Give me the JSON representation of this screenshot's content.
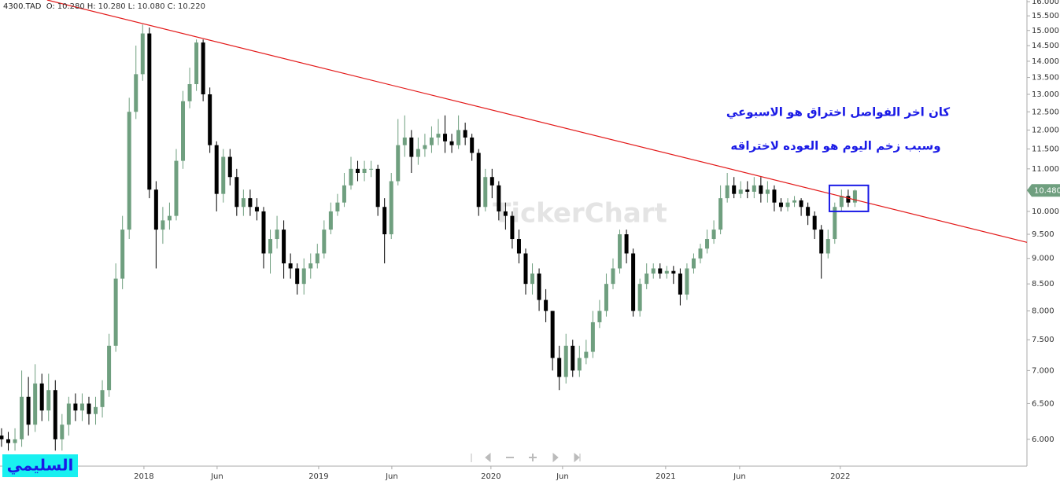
{
  "chart_data": {
    "type": "candlestick",
    "header": {
      "symbol": "4300.TAD",
      "fields": [
        {
          "label": "O:",
          "value": "10.280"
        },
        {
          "label": "H:",
          "value": "10.280"
        },
        {
          "label": "L:",
          "value": "10.080"
        },
        {
          "label": "C:",
          "value": "10.220"
        }
      ]
    },
    "log_scale": true,
    "grid": false,
    "up_color": "#6f9f7f",
    "down_color": "#000000",
    "xlim": [
      -0.23,
      152.6
    ],
    "xticks": [
      {
        "value": 21.19,
        "label": "2018"
      },
      {
        "value": 32.08,
        "label": "Jun"
      },
      {
        "value": 47.19,
        "label": "2019"
      },
      {
        "value": 58.08,
        "label": "Jun"
      },
      {
        "value": 72.83,
        "label": "2020"
      },
      {
        "value": 83.49,
        "label": "Jun"
      },
      {
        "value": 98.83,
        "label": "2021"
      },
      {
        "value": 109.84,
        "label": "Jun"
      },
      {
        "value": 124.82,
        "label": "2022"
      }
    ],
    "ylim": [
      5.65,
      16.06
    ],
    "yticks": [
      {
        "value": 6,
        "label": "6.000"
      },
      {
        "value": 6.5,
        "label": "6.500"
      },
      {
        "value": 7,
        "label": "7.000"
      },
      {
        "value": 7.5,
        "label": "7.500"
      },
      {
        "value": 8,
        "label": "8.000"
      },
      {
        "value": 8.5,
        "label": "8.500"
      },
      {
        "value": 9,
        "label": "9.000"
      },
      {
        "value": 9.5,
        "label": "9.500"
      },
      {
        "value": 10,
        "label": "10.000"
      },
      {
        "value": 10.5,
        "label": "10.500"
      },
      {
        "value": 11,
        "label": "11.000"
      },
      {
        "value": 11.5,
        "label": "11.500"
      },
      {
        "value": 12,
        "label": "12.000"
      },
      {
        "value": 12.5,
        "label": "12.500"
      },
      {
        "value": 13,
        "label": "13.000"
      },
      {
        "value": 13.5,
        "label": "13.500"
      },
      {
        "value": 14,
        "label": "14.000"
      },
      {
        "value": 14.5,
        "label": "14.500"
      },
      {
        "value": 15,
        "label": "15.000"
      },
      {
        "value": 15.5,
        "label": "15.500"
      },
      {
        "value": 16,
        "label": "16.000"
      }
    ],
    "open": [
      6.05,
      6.0,
      5.95,
      6.0,
      6.6,
      6.2,
      6.8,
      6.4,
      6.7,
      6.0,
      6.2,
      6.5,
      6.4,
      6.5,
      6.35,
      6.45,
      6.7,
      7.4,
      8.6,
      9.6,
      12.5,
      13.6,
      14.9,
      10.5,
      9.6,
      9.8,
      9.9,
      11.2,
      12.8,
      13.3,
      14.6,
      13.0,
      11.6,
      10.4,
      11.3,
      10.8,
      10.1,
      10.3,
      10.1,
      10.0,
      9.1,
      9.4,
      9.6,
      8.9,
      8.8,
      8.5,
      8.8,
      8.9,
      9.1,
      9.6,
      10.0,
      10.2,
      10.6,
      11.0,
      10.9,
      11.0,
      11.0,
      10.1,
      9.5,
      10.7,
      11.6,
      11.8,
      11.3,
      11.5,
      11.6,
      11.8,
      11.9,
      11.7,
      11.6,
      12.0,
      11.8,
      11.4,
      10.1,
      10.8,
      10.6,
      10.0,
      9.9,
      9.4,
      9.1,
      8.5,
      8.7,
      8.2,
      8.0,
      7.2,
      6.9,
      7.4,
      7.0,
      7.2,
      7.3,
      7.8,
      8.0,
      8.5,
      8.8,
      9.5,
      9.1,
      8.0,
      8.5,
      8.7,
      8.8,
      8.7,
      8.75,
      8.7,
      8.3,
      8.8,
      9.0,
      9.2,
      9.4,
      9.6,
      10.3,
      10.6,
      10.4,
      10.5,
      10.45,
      10.6,
      10.4,
      10.5,
      10.2,
      10.1,
      10.2,
      10.25,
      10.1,
      9.9,
      9.6,
      9.1,
      9.4,
      10.1,
      10.35,
      10.2
    ],
    "high": [
      6.15,
      6.1,
      6.15,
      7.0,
      6.9,
      7.1,
      6.95,
      6.95,
      6.85,
      6.35,
      6.6,
      6.65,
      6.65,
      6.6,
      6.6,
      6.85,
      7.6,
      8.9,
      9.9,
      12.9,
      14.5,
      15.2,
      15.1,
      10.7,
      10.1,
      10.2,
      11.5,
      13.1,
      13.8,
      14.7,
      14.7,
      13.2,
      11.7,
      11.5,
      11.5,
      11.0,
      10.5,
      10.5,
      10.3,
      10.1,
      9.6,
      9.9,
      9.8,
      9.1,
      8.9,
      9.0,
      9.1,
      9.3,
      9.8,
      10.2,
      10.4,
      10.9,
      11.3,
      11.2,
      11.2,
      11.2,
      11.1,
      10.3,
      10.9,
      12.3,
      12.4,
      12.0,
      11.8,
      11.9,
      12.1,
      12.3,
      12.4,
      11.9,
      12.4,
      12.2,
      11.9,
      11.5,
      11.0,
      11.0,
      10.7,
      10.2,
      10.0,
      9.6,
      9.2,
      8.9,
      8.8,
      8.4,
      8.0,
      7.4,
      7.6,
      7.5,
      7.4,
      7.5,
      8.0,
      8.2,
      8.7,
      9.0,
      9.6,
      9.6,
      9.2,
      8.6,
      8.9,
      8.9,
      8.9,
      8.85,
      8.85,
      8.8,
      8.9,
      9.1,
      9.3,
      9.6,
      9.8,
      10.6,
      10.9,
      10.8,
      10.7,
      10.7,
      10.8,
      10.8,
      10.7,
      10.6,
      10.3,
      10.3,
      10.35,
      10.3,
      10.2,
      10.0,
      9.7,
      9.6,
      10.2,
      10.5,
      10.5,
      10.5
    ],
    "low": [
      5.9,
      5.85,
      5.85,
      5.9,
      6.05,
      6.1,
      6.25,
      6.25,
      5.85,
      5.85,
      6.05,
      6.25,
      6.25,
      6.2,
      6.2,
      6.3,
      6.6,
      7.3,
      8.4,
      9.4,
      12.3,
      13.4,
      10.3,
      8.8,
      9.3,
      9.6,
      9.8,
      11.0,
      12.6,
      13.1,
      12.8,
      11.4,
      10.0,
      10.2,
      10.6,
      9.9,
      9.9,
      9.9,
      9.8,
      8.8,
      8.7,
      9.2,
      8.6,
      8.6,
      8.3,
      8.3,
      8.6,
      8.8,
      9.0,
      9.5,
      9.9,
      10.1,
      10.5,
      10.7,
      10.7,
      10.8,
      9.9,
      8.9,
      9.4,
      10.6,
      11.3,
      10.9,
      11.1,
      11.3,
      11.4,
      11.6,
      11.4,
      11.4,
      11.5,
      11.6,
      11.2,
      9.9,
      10.0,
      10.3,
      9.8,
      9.6,
      9.2,
      8.9,
      8.3,
      8.3,
      8.0,
      7.8,
      7.0,
      6.7,
      6.8,
      6.9,
      6.9,
      7.1,
      7.2,
      7.7,
      7.9,
      8.4,
      8.7,
      8.9,
      7.9,
      7.9,
      8.4,
      8.6,
      8.6,
      8.6,
      8.5,
      8.1,
      8.2,
      8.7,
      8.9,
      9.1,
      9.3,
      9.5,
      10.2,
      10.3,
      10.3,
      10.3,
      10.3,
      10.2,
      10.2,
      10.0,
      10.0,
      10.0,
      10.1,
      9.9,
      9.7,
      9.4,
      8.6,
      9.0,
      9.3,
      10.0,
      10.1,
      10.1
    ],
    "close": [
      6.0,
      5.95,
      6.0,
      6.6,
      6.2,
      6.8,
      6.4,
      6.7,
      6.0,
      6.2,
      6.5,
      6.4,
      6.5,
      6.35,
      6.45,
      6.7,
      7.4,
      8.6,
      9.6,
      12.5,
      13.6,
      14.9,
      10.5,
      9.6,
      9.8,
      9.9,
      11.2,
      12.8,
      13.3,
      14.6,
      13.0,
      11.6,
      10.4,
      11.3,
      10.8,
      10.1,
      10.3,
      10.1,
      10.0,
      9.1,
      9.4,
      9.6,
      8.9,
      8.8,
      8.5,
      8.8,
      8.9,
      9.1,
      9.6,
      10.0,
      10.2,
      10.6,
      11.0,
      10.9,
      11.0,
      11.0,
      10.1,
      9.5,
      10.7,
      11.6,
      11.8,
      11.3,
      11.5,
      11.6,
      11.8,
      11.9,
      11.7,
      11.6,
      12.0,
      11.8,
      11.4,
      10.1,
      10.8,
      10.6,
      10.0,
      9.9,
      9.4,
      9.1,
      8.5,
      8.7,
      8.2,
      8.0,
      7.2,
      6.9,
      7.4,
      7.0,
      7.2,
      7.3,
      7.8,
      8.0,
      8.5,
      8.8,
      9.5,
      9.1,
      8.0,
      8.5,
      8.7,
      8.8,
      8.7,
      8.75,
      8.7,
      8.3,
      8.8,
      9.0,
      9.2,
      9.4,
      9.6,
      10.3,
      10.6,
      10.4,
      10.5,
      10.45,
      10.6,
      10.4,
      10.5,
      10.2,
      10.1,
      10.2,
      10.25,
      10.1,
      9.9,
      9.6,
      9.1,
      9.4,
      10.1,
      10.35,
      10.2,
      10.48
    ],
    "last_price": {
      "value": 10.48,
      "label": "10.480"
    },
    "trendline": {
      "color": "#e31a1a",
      "x": [
        6.79,
        152.6
      ],
      "values": [
        16.06,
        9.33
      ]
    },
    "highlight_box": {
      "color": "#1a1ae6",
      "x": [
        123.2,
        129.0
      ],
      "values": [
        10.6,
        10.0
      ]
    },
    "annotations": [
      "كان اخر الفواصل اختراق هو الاسبوعي",
      "وسبب زخم اليوم هو العوده لاختراقه"
    ],
    "watermark": "TickerChart",
    "signature": "السليمي"
  }
}
